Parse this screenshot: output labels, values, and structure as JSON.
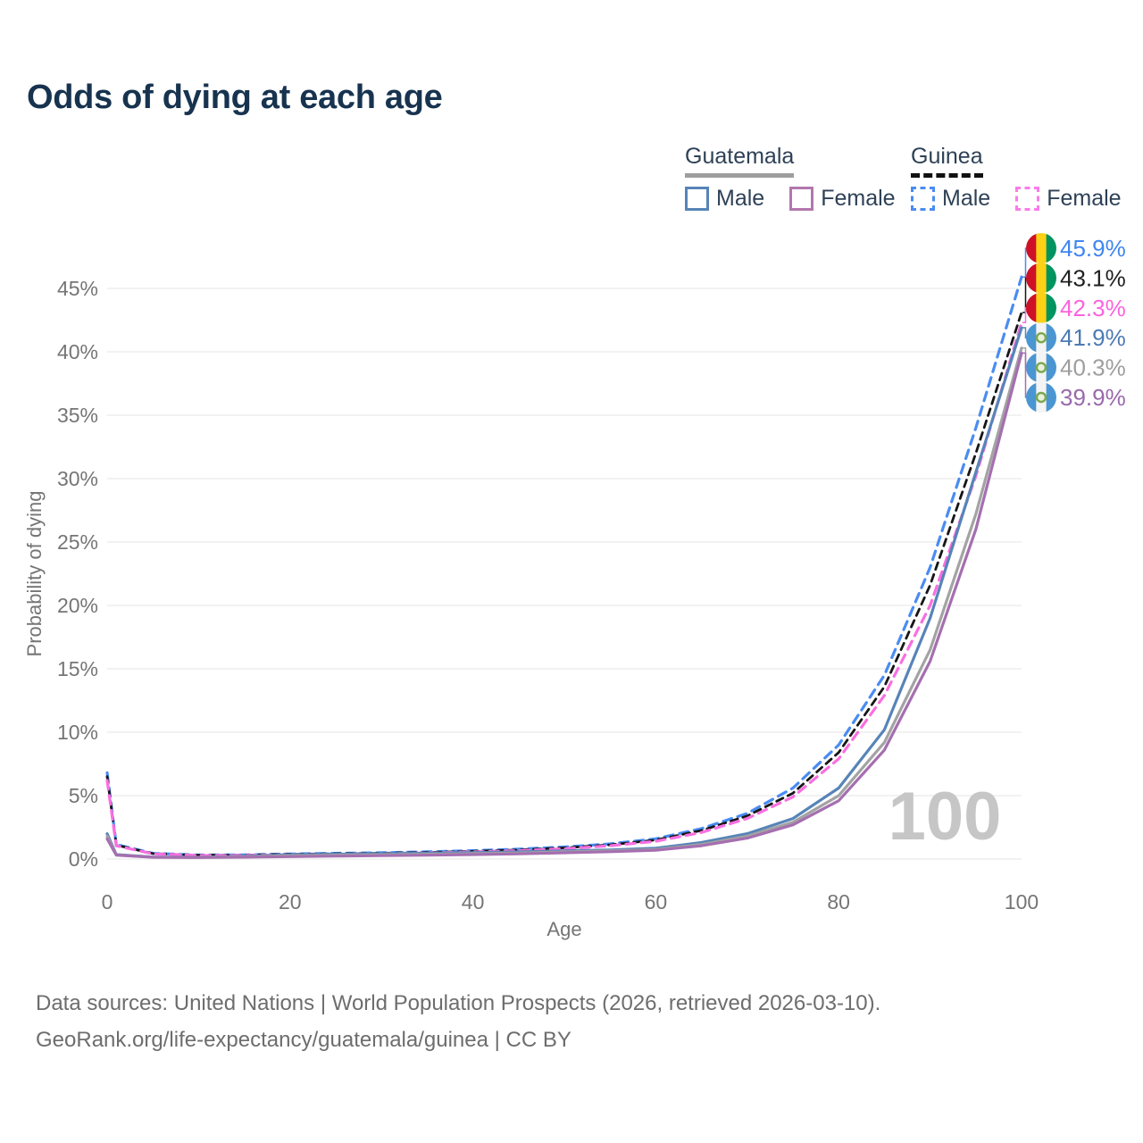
{
  "page": {
    "title": "Odds of dying at each age"
  },
  "legend": {
    "groups": [
      {
        "id": "guatemala",
        "name": "Guatemala",
        "underline_style": "solid",
        "underline_color": "#9e9e9e",
        "items": [
          {
            "id": "guatemala-male",
            "label": "Male",
            "swatch_color": "#5784b8",
            "dashed": false
          },
          {
            "id": "guatemala-female",
            "label": "Female",
            "swatch_color": "#b277ad",
            "dashed": false
          }
        ]
      },
      {
        "id": "guinea",
        "name": "Guinea",
        "underline_style": "dashed",
        "underline_color": "#111111",
        "items": [
          {
            "id": "guinea-male",
            "label": "Male",
            "swatch_color": "#4a8cf2",
            "dashed": true
          },
          {
            "id": "guinea-female",
            "label": "Female",
            "swatch_color": "#fb7ce8",
            "dashed": true
          }
        ]
      }
    ]
  },
  "footer": {
    "line1": "Data sources: United Nations | World Population Prospects (2026, retrieved 2026-03-10).",
    "line2": "GeoRank.org/life-expectancy/guatemala/guinea | CC BY"
  },
  "colors": {
    "title_text": "#17334f",
    "axis_text": "#757575",
    "gridline": "#ebebeb",
    "legend_text": "#2e4156",
    "footer_text": "#6d6d6d",
    "watermark": "#c6c6c6"
  },
  "flags": {
    "guinea": {
      "stripes": [
        "#ce1126",
        "#fcd116",
        "#009460"
      ]
    },
    "guatemala": {
      "stripes": [
        "#4a96d2",
        "#f4f4f4",
        "#4a96d2"
      ],
      "emblem_stroke": "#7aa84c",
      "emblem_fill": "#e9f0dd"
    }
  },
  "chart_data": {
    "type": "line",
    "title": "Odds of dying at each age",
    "xlabel": "Age",
    "ylabel": "Probability of dying",
    "xlim": [
      0,
      100
    ],
    "ylim": [
      0,
      45
    ],
    "grid": "horizontal-only",
    "legend_position": "top-right",
    "watermark": "100",
    "x_ticks": [
      0,
      20,
      40,
      60,
      80,
      100
    ],
    "y_ticks": [
      0,
      5,
      10,
      15,
      20,
      25,
      30,
      35,
      40,
      45
    ],
    "y_tick_labels": [
      "0%",
      "5%",
      "10%",
      "15%",
      "20%",
      "25%",
      "30%",
      "35%",
      "40%",
      "45%"
    ],
    "x": [
      0,
      1,
      5,
      10,
      15,
      20,
      25,
      30,
      35,
      40,
      45,
      50,
      55,
      60,
      65,
      70,
      75,
      80,
      85,
      90,
      95,
      100
    ],
    "series": [
      {
        "id": "guinea-male",
        "name": "Guinea Male",
        "flag": "guinea",
        "color": "#4a8cf2",
        "label_color": "#3f86f0",
        "dash": "10 7",
        "width": 3.2,
        "end_label": "45.9%",
        "values": [
          6.8,
          1.15,
          0.45,
          0.32,
          0.33,
          0.4,
          0.45,
          0.5,
          0.57,
          0.66,
          0.78,
          0.95,
          1.2,
          1.6,
          2.4,
          3.6,
          5.6,
          9.0,
          14.5,
          23.0,
          34.0,
          45.9
        ]
      },
      {
        "id": "guinea-both",
        "name": "Guinea",
        "flag": "guinea",
        "color": "#161616",
        "label_color": "#1f1f1f",
        "dash": "8 6",
        "width": 2.8,
        "end_label": "43.1%",
        "values": [
          6.5,
          1.1,
          0.43,
          0.3,
          0.31,
          0.37,
          0.42,
          0.46,
          0.52,
          0.61,
          0.72,
          0.88,
          1.12,
          1.5,
          2.25,
          3.4,
          5.2,
          8.4,
          13.6,
          21.6,
          32.0,
          43.1
        ]
      },
      {
        "id": "guinea-female",
        "name": "Guinea Female",
        "flag": "guinea",
        "color": "#f96fe0",
        "label_color": "#fb63dd",
        "dash": "10 7",
        "width": 3.2,
        "end_label": "42.3%",
        "values": [
          6.2,
          1.05,
          0.41,
          0.28,
          0.29,
          0.33,
          0.38,
          0.42,
          0.48,
          0.56,
          0.66,
          0.81,
          1.05,
          1.4,
          2.1,
          3.2,
          4.9,
          7.9,
          12.9,
          20.0,
          30.2,
          42.3
        ]
      },
      {
        "id": "guatemala-male",
        "name": "Guatemala Male",
        "flag": "guatemala",
        "color": "#5784b8",
        "label_color": "#4c7ab3",
        "dash": null,
        "width": 3.2,
        "end_label": "41.9%",
        "values": [
          2.0,
          0.35,
          0.16,
          0.14,
          0.22,
          0.33,
          0.38,
          0.42,
          0.46,
          0.5,
          0.56,
          0.65,
          0.72,
          0.85,
          1.3,
          2.0,
          3.2,
          5.6,
          10.2,
          19.0,
          30.5,
          41.9
        ]
      },
      {
        "id": "guatemala-both",
        "name": "Guatemala",
        "flag": "guatemala",
        "color": "#a3a3a3",
        "label_color": "#9e9e9e",
        "dash": null,
        "width": 3.2,
        "end_label": "40.3%",
        "values": [
          1.8,
          0.33,
          0.15,
          0.13,
          0.18,
          0.26,
          0.3,
          0.34,
          0.38,
          0.42,
          0.48,
          0.56,
          0.64,
          0.75,
          1.15,
          1.8,
          2.9,
          5.0,
          9.2,
          16.5,
          27.2,
          40.3
        ]
      },
      {
        "id": "guatemala-female",
        "name": "Guatemala Female",
        "flag": "guatemala",
        "color": "#a56fb0",
        "label_color": "#9a68ac",
        "dash": null,
        "width": 3.2,
        "end_label": "39.9%",
        "values": [
          1.6,
          0.31,
          0.14,
          0.12,
          0.15,
          0.19,
          0.23,
          0.27,
          0.31,
          0.35,
          0.41,
          0.49,
          0.58,
          0.7,
          1.05,
          1.65,
          2.7,
          4.6,
          8.6,
          15.6,
          26.0,
          39.9
        ]
      }
    ]
  }
}
